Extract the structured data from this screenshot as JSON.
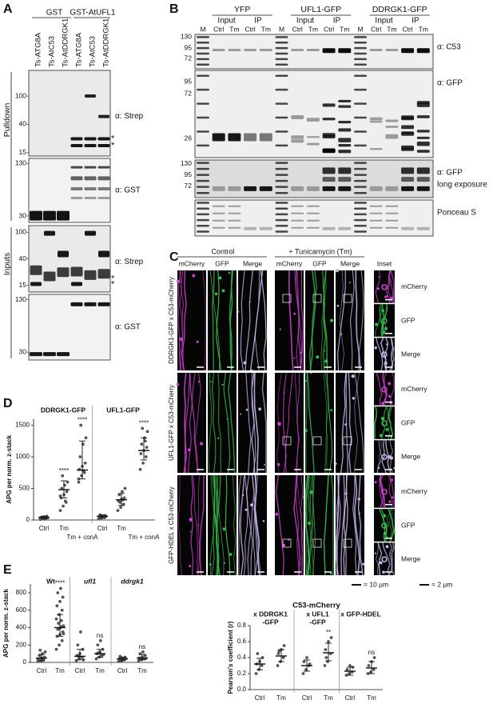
{
  "panel_a": {
    "label": "A",
    "groups": [
      "GST",
      "GST-AtUFL1"
    ],
    "lanes": [
      "Ts-ATG8A",
      "Ts-AtC53",
      "Ts-AtDDRGK1",
      "Ts-ATG8A",
      "Ts-AtC53",
      "Ts-AtDDRGK1"
    ],
    "sections": [
      "Pulldown",
      "Inputs"
    ],
    "blots": [
      {
        "markers": [
          100,
          40,
          15
        ],
        "antibody": "α: Strep",
        "highlight": "*"
      },
      {
        "markers": [
          130,
          30
        ],
        "antibody": "α: GST"
      },
      {
        "markers": [
          100,
          40,
          15
        ],
        "antibody": "α: Strep",
        "highlight": "*"
      },
      {
        "markers": [
          130,
          30
        ],
        "antibody": "α: GST"
      }
    ]
  },
  "panel_b": {
    "label": "B",
    "groups": [
      "YFP",
      "UFL1-GFP",
      "DDRGK1-GFP"
    ],
    "fractions": [
      "Input",
      "IP"
    ],
    "lanes": [
      "M",
      "Ctrl",
      "Tm",
      "Ctrl",
      "Tm"
    ],
    "blots": [
      {
        "markers": [
          130,
          95,
          72
        ],
        "labels": [
          "α: C53"
        ]
      },
      {
        "markers": [
          95,
          72,
          26
        ],
        "labels": [
          "α: GFP"
        ]
      },
      {
        "markers": [
          130,
          95,
          72
        ],
        "labels": [
          "α: GFP",
          "long exposure"
        ]
      },
      {
        "labels": [
          "Ponceau S"
        ]
      }
    ]
  },
  "panel_c": {
    "label": "C",
    "conditions": [
      "Control",
      "+ Tunicamycin (Tm)"
    ],
    "channels": [
      "mCherry",
      "GFP",
      "Merge"
    ],
    "inset_title": "Inset",
    "rows": [
      "DDRGK1-GFP x C53-mCherry",
      "UFL1-GFP x C53-mCherry",
      "GFP-HDEL x C53-mCherry"
    ],
    "scale_bars": [
      "= 10 µm",
      "= 2 µm"
    ]
  },
  "chart_data": [
    {
      "type": "strip",
      "panel_label": "D",
      "group_labels": [
        "DDRGK1-GFP",
        "UFL1-GFP"
      ],
      "ylabel": "APG per norm. z-stack",
      "categories": [
        "Ctrl",
        "Tm",
        "Tm + conA",
        "Ctrl",
        "Tm",
        "Tm + conA"
      ],
      "points": [
        [
          10,
          20,
          30,
          40,
          50,
          60,
          25,
          15,
          35,
          45
        ],
        [
          150,
          220,
          280,
          350,
          400,
          450,
          500,
          550,
          600,
          700,
          300,
          380
        ],
        [
          600,
          700,
          750,
          800,
          850,
          900,
          1000,
          1200,
          1300,
          1500,
          780,
          650
        ],
        [
          20,
          30,
          40,
          50,
          60,
          70,
          80,
          45,
          55
        ],
        [
          150,
          200,
          250,
          300,
          330,
          350,
          400,
          450,
          500,
          280,
          320
        ],
        [
          800,
          900,
          1000,
          1050,
          1100,
          1150,
          1200,
          1300,
          1400,
          1450,
          1250
        ]
      ],
      "center": [
        40,
        480,
        790,
        60,
        320,
        1100
      ],
      "lower": [
        20,
        350,
        650,
        30,
        230,
        950
      ],
      "upper": [
        60,
        620,
        1250,
        80,
        420,
        1300
      ],
      "annotations": [
        null,
        "****",
        "****",
        null,
        null,
        "****"
      ],
      "ylim": [
        0,
        1600
      ],
      "yticks": [
        0,
        500,
        1000,
        1500
      ],
      "color": "#555555"
    },
    {
      "type": "strip",
      "panel_label": "E",
      "group_labels": [
        "Wt",
        "ufl1",
        "ddrgk1"
      ],
      "ylabel": "APG per norm. z-stack",
      "categories": [
        "Ctrl",
        "Tm",
        "Ctrl",
        "Tm",
        "Ctrl",
        "Tm"
      ],
      "points": [
        [
          10,
          20,
          30,
          40,
          50,
          60,
          80,
          100,
          120,
          140,
          25,
          35
        ],
        [
          150,
          200,
          250,
          300,
          320,
          350,
          380,
          400,
          420,
          450,
          480,
          500,
          550,
          600,
          650,
          700,
          750,
          800,
          850,
          330,
          390,
          410
        ],
        [
          20,
          40,
          60,
          80,
          100,
          150,
          200,
          350,
          30,
          70
        ],
        [
          40,
          60,
          80,
          100,
          120,
          150,
          200,
          250,
          90,
          110
        ],
        [
          10,
          20,
          30,
          40,
          50,
          60,
          70,
          35,
          45
        ],
        [
          20,
          30,
          40,
          50,
          60,
          80,
          100,
          120,
          45
        ]
      ],
      "center": [
        50,
        400,
        70,
        100,
        40,
        50
      ],
      "lower": [
        20,
        300,
        30,
        60,
        20,
        30
      ],
      "upper": [
        90,
        550,
        150,
        150,
        60,
        90
      ],
      "annotations": [
        null,
        "****",
        null,
        "ns",
        null,
        "ns"
      ],
      "ylim": [
        0,
        900
      ],
      "yticks": [
        0,
        200,
        400,
        600,
        800
      ],
      "color": "#555555"
    },
    {
      "type": "strip",
      "title": "C53-mCherry",
      "group_labels": [
        [
          "x DDRGK1",
          "-GFP"
        ],
        [
          "x UFL1",
          "-GFP"
        ],
        [
          "x GFP-HDEL"
        ]
      ],
      "ylabel": "Pearson's coefficient (r)",
      "categories": [
        "Ctrl",
        "Tm",
        "Ctrl",
        "Tm",
        "Ctrl",
        "Tm"
      ],
      "points": [
        [
          0.2,
          0.25,
          0.3,
          0.32,
          0.35,
          0.4,
          0.45
        ],
        [
          0.3,
          0.35,
          0.4,
          0.45,
          0.5,
          0.55,
          0.48
        ],
        [
          0.2,
          0.25,
          0.3,
          0.35,
          0.4,
          0.32
        ],
        [
          0.3,
          0.35,
          0.45,
          0.5,
          0.6,
          0.65,
          0.4
        ],
        [
          0.18,
          0.2,
          0.22,
          0.25,
          0.3,
          0.28
        ],
        [
          0.2,
          0.22,
          0.25,
          0.3,
          0.35,
          0.4
        ]
      ],
      "center": [
        0.32,
        0.42,
        0.3,
        0.46,
        0.23,
        0.27
      ],
      "lower": [
        0.25,
        0.35,
        0.23,
        0.36,
        0.18,
        0.2
      ],
      "upper": [
        0.39,
        0.5,
        0.37,
        0.58,
        0.28,
        0.35
      ],
      "annotations": [
        null,
        null,
        null,
        "**",
        null,
        "ns"
      ],
      "ylim": [
        0,
        0.8
      ],
      "yticks": [
        {
          "value": 0,
          "label": "0.0"
        },
        {
          "value": 0.2,
          "label": "0.2"
        },
        {
          "value": 0.4,
          "label": "0.4"
        },
        {
          "value": 0.6,
          "label": "0.6"
        },
        {
          "value": 0.8,
          "label": "0.8"
        }
      ],
      "color": "#555555"
    }
  ]
}
